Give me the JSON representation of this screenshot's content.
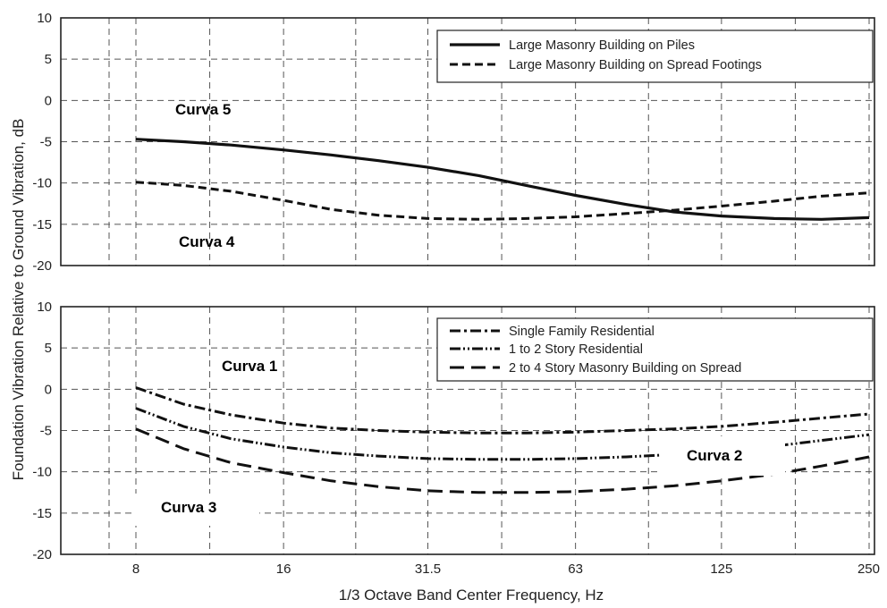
{
  "chart_data": [
    {
      "type": "line",
      "x_scale": "log",
      "x_ticks": [
        8,
        16,
        31.5,
        63,
        125,
        250
      ],
      "ylim": [
        -20,
        10
      ],
      "yticks": [
        10,
        5,
        0,
        -5,
        -10,
        -15,
        -20
      ],
      "grid": true,
      "legend_position": "top-right",
      "series": [
        {
          "name": "Large Masonry Building on Piles",
          "style": "solid",
          "x": [
            8,
            10,
            12.5,
            16,
            20,
            25,
            31.5,
            40,
            50,
            63,
            80,
            100,
            125,
            160,
            200,
            250
          ],
          "y": [
            -4.7,
            -5,
            -5.4,
            -6,
            -6.6,
            -7.3,
            -8.1,
            -9.1,
            -10.3,
            -11.5,
            -12.6,
            -13.5,
            -14,
            -14.3,
            -14.4,
            -14.2
          ]
        },
        {
          "name": "Large Masonry Building on Spread Footings",
          "style": "dashed",
          "x": [
            8,
            10,
            12.5,
            16,
            20,
            25,
            31.5,
            40,
            50,
            63,
            80,
            100,
            125,
            160,
            200,
            250
          ],
          "y": [
            -9.9,
            -10.3,
            -11,
            -12.1,
            -13.2,
            -13.9,
            -14.3,
            -14.4,
            -14.3,
            -14.1,
            -13.7,
            -13.3,
            -12.8,
            -12.2,
            -11.6,
            -11.2
          ]
        }
      ],
      "annotations": [
        "Curva 5",
        "Curva 4"
      ]
    },
    {
      "type": "line",
      "x_scale": "log",
      "x_ticks": [
        8,
        16,
        31.5,
        63,
        125,
        250
      ],
      "ylim": [
        -20,
        10
      ],
      "yticks": [
        10,
        5,
        0,
        -5,
        -10,
        -15,
        -20
      ],
      "grid": true,
      "legend_position": "top-right",
      "series": [
        {
          "name": "Single Family Residential",
          "style": "dash-dot",
          "x": [
            8,
            10,
            12.5,
            16,
            20,
            25,
            31.5,
            40,
            50,
            63,
            80,
            100,
            125,
            160,
            200,
            250
          ],
          "y": [
            0.2,
            -1.8,
            -3.1,
            -4.1,
            -4.7,
            -5,
            -5.2,
            -5.3,
            -5.3,
            -5.2,
            -5,
            -4.8,
            -4.5,
            -4,
            -3.5,
            -3
          ]
        },
        {
          "name": "1 to 2 Story Residential",
          "style": "dash-dot-dot",
          "x": [
            8,
            10,
            12.5,
            16,
            20,
            25,
            31.5,
            40,
            50,
            63,
            80,
            100,
            125,
            160,
            200,
            250
          ],
          "y": [
            -2.3,
            -4.5,
            -6,
            -7,
            -7.7,
            -8.1,
            -8.4,
            -8.5,
            -8.5,
            -8.4,
            -8.2,
            -7.9,
            -7.5,
            -6.9,
            -6.2,
            -5.5
          ]
        },
        {
          "name": "2 to 4 Story Masonry Building on Spread",
          "style": "long-dash",
          "x": [
            8,
            10,
            12.5,
            16,
            20,
            25,
            31.5,
            40,
            50,
            63,
            80,
            100,
            125,
            160,
            200,
            250
          ],
          "y": [
            -4.8,
            -7.2,
            -8.9,
            -10.1,
            -11.1,
            -11.8,
            -12.3,
            -12.5,
            -12.5,
            -12.4,
            -12.1,
            -11.7,
            -11.1,
            -10.3,
            -9.3,
            -8.2
          ]
        }
      ],
      "annotations": [
        "Curva 1",
        "Curva 2",
        "Curva 3"
      ]
    }
  ],
  "axes": {
    "ylabel": "Foundation Vibration Relative to Ground Vibration, dB",
    "xlabel": "1/3 Octave Band Center Frequency, Hz",
    "x_tick_labels": [
      "8",
      "16",
      "31.5",
      "63",
      "125",
      "250"
    ]
  }
}
